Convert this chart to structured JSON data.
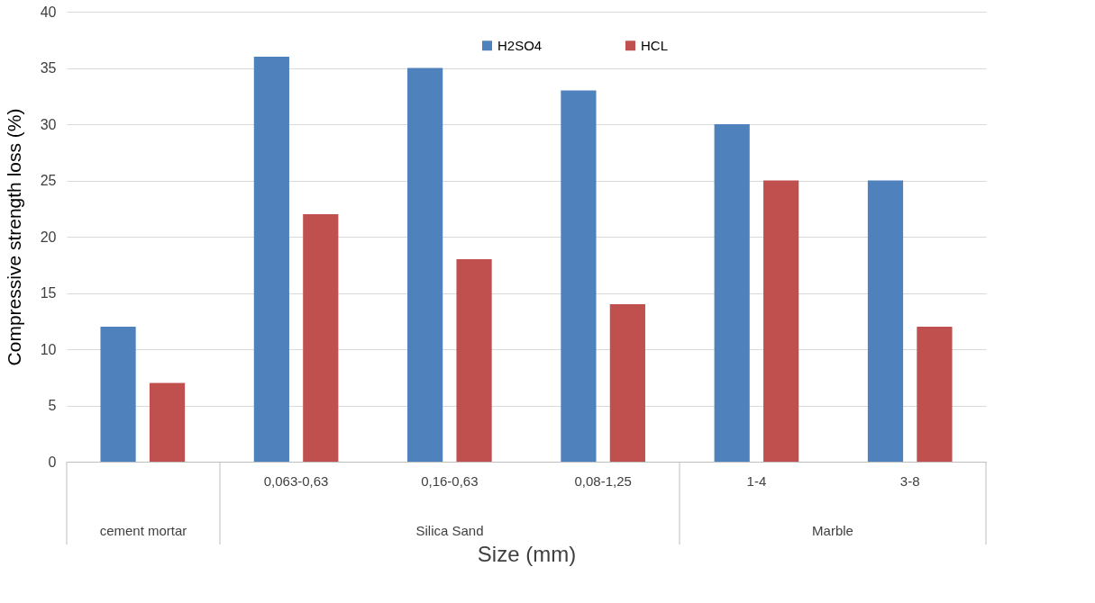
{
  "chart_data": {
    "type": "bar",
    "xlabel": "Size (mm)",
    "ylabel": "Compressive strength loss (%)",
    "categories": [
      null,
      "0,063-0,63",
      "0,16-0,63",
      "0,08-1,25",
      "1-4",
      "3-8"
    ],
    "series": [
      {
        "name": "H2SO4",
        "color": "#4f81bd",
        "values": [
          12,
          36,
          35,
          33,
          30,
          25
        ]
      },
      {
        "name": "HCL",
        "color": "#c0504d",
        "values": [
          7,
          22,
          18,
          14,
          25,
          12
        ]
      }
    ],
    "annotations": [
      "cement mortar",
      "Silica Sand",
      "Marble"
    ],
    "ylim": [
      0,
      40
    ],
    "yticks": [
      0,
      5,
      10,
      15,
      20,
      25,
      30,
      35,
      40
    ],
    "grid": "y",
    "legend": "top"
  }
}
